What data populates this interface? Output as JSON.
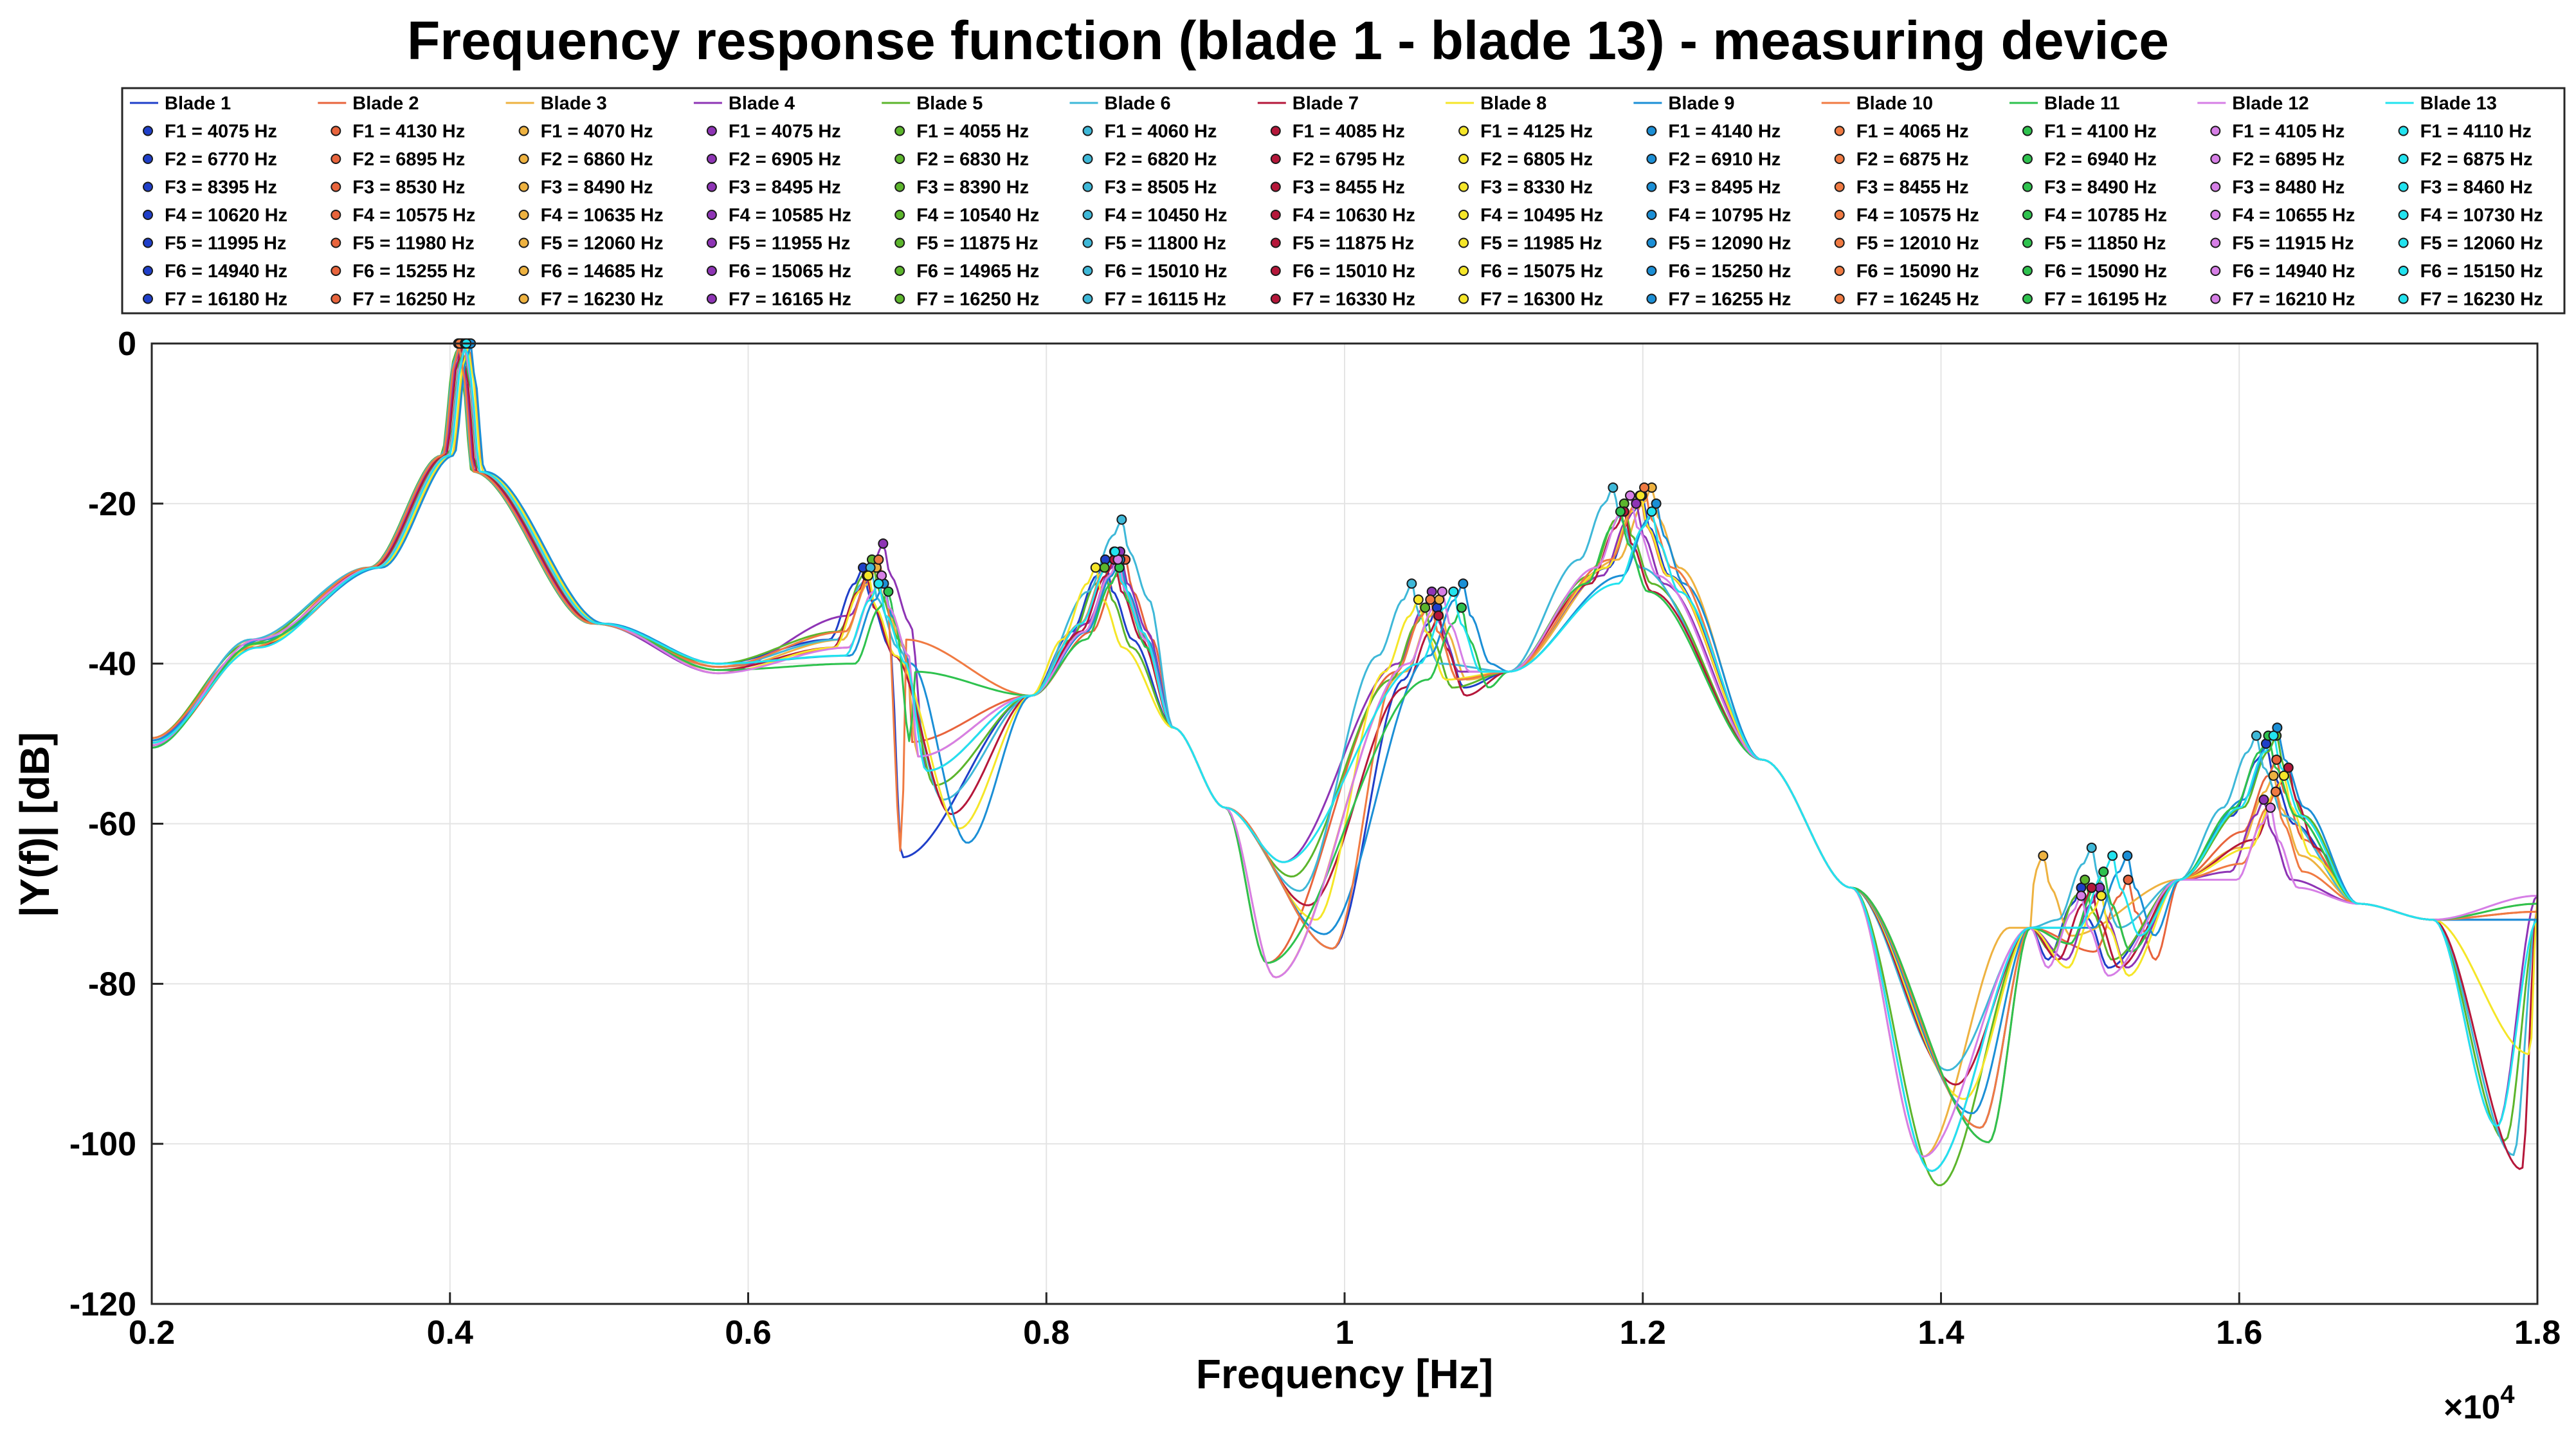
{
  "chart_data": {
    "type": "line",
    "title": "Frequency response function (blade 1 - blade 13) - measuring device",
    "xlabel": "Frequency [Hz]",
    "ylabel": "|Y(f)| [dB]",
    "x_exponent_label": "×10",
    "x_exponent_power": "4",
    "xlim": [
      2000,
      18000
    ],
    "ylim": [
      -120,
      0
    ],
    "grid": true,
    "legend_location": "top",
    "x_ticks": [
      {
        "value": 2000,
        "label": "0.2"
      },
      {
        "value": 4000,
        "label": "0.4"
      },
      {
        "value": 6000,
        "label": "0.6"
      },
      {
        "value": 8000,
        "label": "0.8"
      },
      {
        "value": 10000,
        "label": "1"
      },
      {
        "value": 12000,
        "label": "1.2"
      },
      {
        "value": 14000,
        "label": "1.4"
      },
      {
        "value": 16000,
        "label": "1.6"
      },
      {
        "value": 18000,
        "label": "1.8"
      }
    ],
    "y_ticks": [
      {
        "value": 0,
        "label": "0"
      },
      {
        "value": -20,
        "label": "-20"
      },
      {
        "value": -40,
        "label": "-40"
      },
      {
        "value": -60,
        "label": "-60"
      },
      {
        "value": -80,
        "label": "-80"
      },
      {
        "value": -100,
        "label": "-100"
      },
      {
        "value": -120,
        "label": "-120"
      }
    ],
    "series": [
      {
        "name": "Blade 1",
        "color": "#1f3fc9",
        "modes": [
          "F1 = 4075 Hz",
          "F2 = 6770 Hz",
          "F3 = 8395 Hz",
          "F4 = 10620 Hz",
          "F5 = 11995 Hz",
          "F6 = 14940 Hz",
          "F7 = 16180 Hz"
        ],
        "peaks": [
          [
            4075,
            0
          ],
          [
            6770,
            -28
          ],
          [
            8395,
            -27
          ],
          [
            10620,
            -33
          ],
          [
            11995,
            -19
          ],
          [
            14940,
            -68
          ],
          [
            16180,
            -50
          ]
        ]
      },
      {
        "name": "Blade 2",
        "color": "#e8643c",
        "modes": [
          "F1 = 4130 Hz",
          "F2 = 6895 Hz",
          "F3 = 8530 Hz",
          "F4 = 10575 Hz",
          "F5 = 11980 Hz",
          "F6 = 15255 Hz",
          "F7 = 16250 Hz"
        ],
        "peaks": [
          [
            4130,
            0
          ],
          [
            6895,
            -29
          ],
          [
            8530,
            -27
          ],
          [
            10575,
            -32
          ],
          [
            11980,
            -19
          ],
          [
            15255,
            -67
          ],
          [
            16250,
            -52
          ]
        ]
      },
      {
        "name": "Blade 3",
        "color": "#eeb240",
        "modes": [
          "F1 = 4070 Hz",
          "F2 = 6860 Hz",
          "F3 = 8490 Hz",
          "F4 = 10635 Hz",
          "F5 = 12060 Hz",
          "F6 = 14685 Hz",
          "F7 = 16230 Hz"
        ],
        "peaks": [
          [
            4070,
            0
          ],
          [
            6860,
            -28
          ],
          [
            8490,
            -27
          ],
          [
            10635,
            -32
          ],
          [
            12060,
            -18
          ],
          [
            14685,
            -64
          ],
          [
            16230,
            -54
          ]
        ]
      },
      {
        "name": "Blade 4",
        "color": "#8e34b5",
        "modes": [
          "F1 = 4075 Hz",
          "F2 = 6905 Hz",
          "F3 = 8495 Hz",
          "F4 = 10585 Hz",
          "F5 = 11955 Hz",
          "F6 = 15065 Hz",
          "F7 = 16165 Hz"
        ],
        "peaks": [
          [
            4075,
            0
          ],
          [
            6905,
            -25
          ],
          [
            8495,
            -26
          ],
          [
            10585,
            -31
          ],
          [
            11955,
            -20
          ],
          [
            15065,
            -68
          ],
          [
            16165,
            -57
          ]
        ]
      },
      {
        "name": "Blade 5",
        "color": "#5cb52c",
        "modes": [
          "F1 = 4055 Hz",
          "F2 = 6830 Hz",
          "F3 = 8390 Hz",
          "F4 = 10540 Hz",
          "F5 = 11875 Hz",
          "F6 = 14965 Hz",
          "F7 = 16250 Hz"
        ],
        "peaks": [
          [
            4055,
            0
          ],
          [
            6830,
            -27
          ],
          [
            8390,
            -28
          ],
          [
            10540,
            -33
          ],
          [
            11875,
            -20
          ],
          [
            14965,
            -67
          ],
          [
            16250,
            -49
          ]
        ]
      },
      {
        "name": "Blade 6",
        "color": "#3eb8d8",
        "modes": [
          "F1 = 4060 Hz",
          "F2 = 6820 Hz",
          "F3 = 8505 Hz",
          "F4 = 10450 Hz",
          "F5 = 11800 Hz",
          "F6 = 15010 Hz",
          "F7 = 16115 Hz"
        ],
        "peaks": [
          [
            4060,
            0
          ],
          [
            6820,
            -28
          ],
          [
            8505,
            -22
          ],
          [
            10450,
            -30
          ],
          [
            11800,
            -18
          ],
          [
            15010,
            -63
          ],
          [
            16115,
            -49
          ]
        ]
      },
      {
        "name": "Blade 7",
        "color": "#b5173a",
        "modes": [
          "F1 = 4085 Hz",
          "F2 = 6795 Hz",
          "F3 = 8455 Hz",
          "F4 = 10630 Hz",
          "F5 = 11875 Hz",
          "F6 = 15010 Hz",
          "F7 = 16330 Hz"
        ],
        "peaks": [
          [
            4085,
            0
          ],
          [
            6795,
            -29
          ],
          [
            8455,
            -27
          ],
          [
            10630,
            -34
          ],
          [
            11875,
            -21
          ],
          [
            15010,
            -68
          ],
          [
            16330,
            -53
          ]
        ]
      },
      {
        "name": "Blade 8",
        "color": "#f5e628",
        "modes": [
          "F1 = 4125 Hz",
          "F2 = 6805 Hz",
          "F3 = 8330 Hz",
          "F4 = 10495 Hz",
          "F5 = 11985 Hz",
          "F6 = 15075 Hz",
          "F7 = 16300 Hz"
        ],
        "peaks": [
          [
            4125,
            0
          ],
          [
            6805,
            -29
          ],
          [
            8330,
            -28
          ],
          [
            10495,
            -32
          ],
          [
            11985,
            -19
          ],
          [
            15075,
            -69
          ],
          [
            16300,
            -54
          ]
        ]
      },
      {
        "name": "Blade 9",
        "color": "#1b8fd6",
        "modes": [
          "F1 = 4140 Hz",
          "F2 = 6910 Hz",
          "F3 = 8495 Hz",
          "F4 = 10795 Hz",
          "F5 = 12090 Hz",
          "F6 = 15250 Hz",
          "F7 = 16255 Hz"
        ],
        "peaks": [
          [
            4140,
            0
          ],
          [
            6910,
            -30
          ],
          [
            8495,
            -27
          ],
          [
            10795,
            -30
          ],
          [
            12090,
            -20
          ],
          [
            15250,
            -64
          ],
          [
            16255,
            -48
          ]
        ]
      },
      {
        "name": "Blade 10",
        "color": "#f07a42",
        "modes": [
          "F1 = 4065 Hz",
          "F2 = 6875 Hz",
          "F3 = 8455 Hz",
          "F4 = 10575 Hz",
          "F5 = 12010 Hz",
          "F6 = 15090 Hz",
          "F7 = 16245 Hz"
        ],
        "peaks": [
          [
            4065,
            0
          ],
          [
            6875,
            -27
          ],
          [
            8455,
            -26
          ],
          [
            10575,
            -32
          ],
          [
            12010,
            -18
          ],
          [
            15090,
            -66
          ],
          [
            16245,
            -56
          ]
        ]
      },
      {
        "name": "Blade 11",
        "color": "#2ec24e",
        "modes": [
          "F1 = 4100 Hz",
          "F2 = 6940 Hz",
          "F3 = 8490 Hz",
          "F4 = 10785 Hz",
          "F5 = 11850 Hz",
          "F6 = 15090 Hz",
          "F7 = 16195 Hz"
        ],
        "peaks": [
          [
            4100,
            0
          ],
          [
            6940,
            -31
          ],
          [
            8490,
            -28
          ],
          [
            10785,
            -33
          ],
          [
            11850,
            -21
          ],
          [
            15090,
            -66
          ],
          [
            16195,
            -49
          ]
        ]
      },
      {
        "name": "Blade 12",
        "color": "#d67ee6",
        "modes": [
          "F1 = 4105 Hz",
          "F2 = 6895 Hz",
          "F3 = 8480 Hz",
          "F4 = 10655 Hz",
          "F5 = 11915 Hz",
          "F6 = 14940 Hz",
          "F7 = 16210 Hz"
        ],
        "peaks": [
          [
            4105,
            0
          ],
          [
            6895,
            -29
          ],
          [
            8480,
            -27
          ],
          [
            10655,
            -31
          ],
          [
            11915,
            -19
          ],
          [
            14940,
            -69
          ],
          [
            16210,
            -58
          ]
        ]
      },
      {
        "name": "Blade 13",
        "color": "#22e3ef",
        "modes": [
          "F1 = 4110 Hz",
          "F2 = 6875 Hz",
          "F3 = 8460 Hz",
          "F4 = 10730 Hz",
          "F5 = 12060 Hz",
          "F6 = 15150 Hz",
          "F7 = 16230 Hz"
        ],
        "peaks": [
          [
            4110,
            0
          ],
          [
            6875,
            -30
          ],
          [
            8460,
            -26
          ],
          [
            10730,
            -31
          ],
          [
            12060,
            -21
          ],
          [
            15150,
            -64
          ],
          [
            16230,
            -49
          ]
        ]
      }
    ]
  }
}
